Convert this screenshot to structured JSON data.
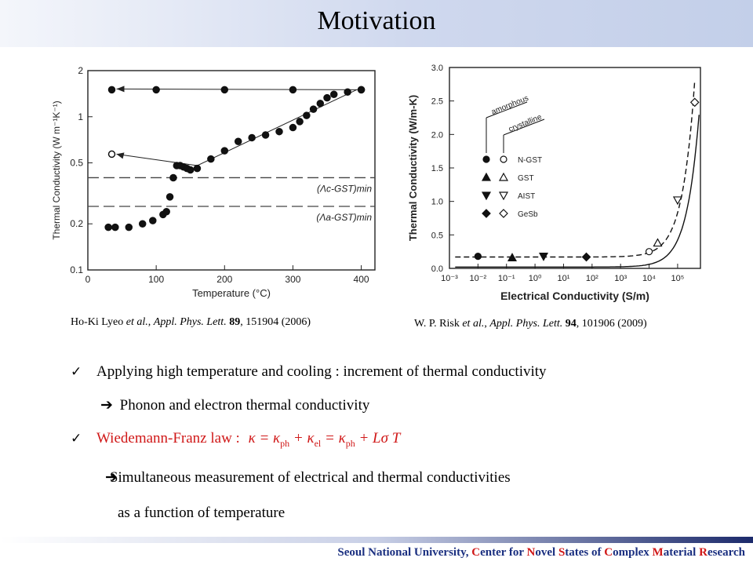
{
  "slide": {
    "title": "Motivation",
    "title_bar_color": "#c9d3ec",
    "footer": {
      "parts": [
        {
          "text": "Seoul National University, ",
          "hl": false
        },
        {
          "text": "C",
          "hl": true
        },
        {
          "text": "enter for ",
          "hl": false
        },
        {
          "text": "N",
          "hl": true
        },
        {
          "text": "ovel ",
          "hl": false
        },
        {
          "text": "S",
          "hl": true
        },
        {
          "text": "tates of ",
          "hl": false
        },
        {
          "text": "C",
          "hl": true
        },
        {
          "text": "omplex ",
          "hl": false
        },
        {
          "text": "M",
          "hl": true
        },
        {
          "text": "aterial ",
          "hl": false
        },
        {
          "text": "R",
          "hl": true
        },
        {
          "text": "esearch",
          "hl": false
        }
      ],
      "color": "#1a2f80",
      "highlight_color": "#d01818"
    }
  },
  "citations": {
    "left": {
      "authors": "Ho-Ki Lyeo",
      "etal": "et al.",
      "journal": "Appl. Phys. Lett.",
      "volume": "89",
      "rest": ", 151904 (2006)"
    },
    "right": {
      "authors": "W. P. Risk",
      "etal": "et al.",
      "journal": "Appl. Phys. Lett.",
      "volume": "94",
      "rest": ", 101906 (2009)"
    }
  },
  "bullets": {
    "b1": "Applying high temperature and cooling : increment of thermal conductivity",
    "b1_sub": "Phonon and electron thermal conductivity",
    "b2_label": "Wiedemann-Franz law :",
    "b3_line1": "Simultaneous measurement of  electrical and thermal conductivities",
    "b3_line2": "as a function of temperature",
    "check_glyph": "✓",
    "arrow_glyph": "➔"
  },
  "chart_data": [
    {
      "type": "scatter",
      "xlabel": "Temperature (°C)",
      "ylabel": "Thermal Conductivity (W m⁻¹K⁻¹)",
      "x_ticks": [
        0,
        100,
        200,
        300,
        400
      ],
      "y_ticks": [
        "0.1",
        "0.2",
        "0.5",
        "1",
        "2"
      ],
      "yscale": "log",
      "xlim": [
        0,
        420
      ],
      "ylim": [
        0.1,
        2
      ],
      "series": [
        {
          "marker": "filled-circle",
          "x": [
            30,
            40,
            60,
            80,
            95,
            110,
            115,
            120,
            125,
            130,
            135,
            140,
            145,
            150,
            160,
            180,
            200,
            220,
            240,
            260,
            280,
            300,
            310,
            320,
            330,
            340,
            350,
            360,
            380,
            400
          ],
          "y": [
            0.19,
            0.19,
            0.19,
            0.2,
            0.21,
            0.23,
            0.24,
            0.3,
            0.4,
            0.48,
            0.48,
            0.47,
            0.46,
            0.45,
            0.46,
            0.53,
            0.6,
            0.69,
            0.73,
            0.76,
            0.8,
            0.85,
            0.93,
            1.02,
            1.12,
            1.22,
            1.33,
            1.4,
            1.45,
            1.5
          ]
        },
        {
          "marker": "filled-circle",
          "x": [
            35,
            100,
            200,
            300,
            400
          ],
          "y": [
            1.5,
            1.5,
            1.5,
            1.5,
            1.5
          ]
        },
        {
          "marker": "open-circle",
          "x": [
            35
          ],
          "y": [
            0.57
          ]
        }
      ],
      "reference_lines": [
        {
          "label": "(Λc-GST)min",
          "y": 0.4
        },
        {
          "label": "(Λa-GST)min",
          "y": 0.26
        }
      ]
    },
    {
      "type": "scatter",
      "xlabel": "Electrical Conductivity (S/m)",
      "ylabel": "Thermal Conductivity (W/m-K)",
      "x_ticks": [
        "10⁻³",
        "10⁻²",
        "10⁻¹",
        "10⁰",
        "10¹",
        "10²",
        "10³",
        "10⁴",
        "10⁵"
      ],
      "y_ticks": [
        "0.0",
        "0.5",
        "1.0",
        "1.5",
        "2.0",
        "2.5",
        "3.0"
      ],
      "xscale": "log",
      "xlim": [
        -3,
        5.8
      ],
      "ylim": [
        0,
        3
      ],
      "legend": {
        "position": "left-middle",
        "column_headers": [
          "amorphous",
          "crystalline"
        ],
        "entries": [
          "N-GST",
          "GST",
          "AIST",
          "GeSb"
        ]
      },
      "series": [
        {
          "name": "N-GST",
          "amorphous": [
            [
              -2.0,
              0.18
            ]
          ],
          "crystalline": [
            [
              4.0,
              0.25
            ]
          ]
        },
        {
          "name": "GST",
          "amorphous": [
            [
              -0.8,
              0.16
            ]
          ],
          "crystalline": [
            [
              4.3,
              0.38
            ]
          ]
        },
        {
          "name": "AIST",
          "amorphous": [
            [
              0.3,
              0.18
            ]
          ],
          "crystalline": [
            [
              5.0,
              1.02
            ]
          ]
        },
        {
          "name": "GeSb",
          "amorphous": [
            [
              1.8,
              0.17
            ]
          ],
          "crystalline": [
            [
              5.6,
              2.48
            ]
          ]
        }
      ]
    }
  ]
}
